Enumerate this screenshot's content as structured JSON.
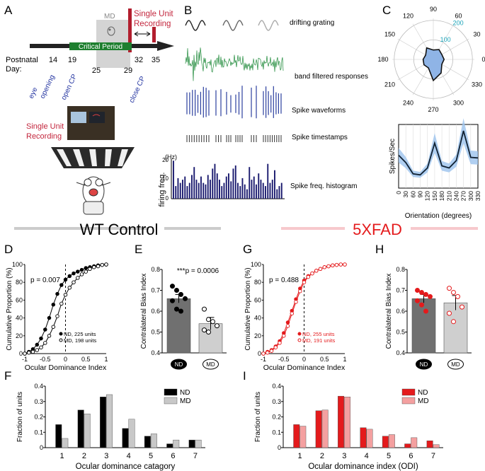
{
  "panel_letters": {
    "A": "A",
    "B": "B",
    "C": "C",
    "D": "D",
    "E": "E",
    "F": "F",
    "G": "G",
    "H": "H",
    "I": "I"
  },
  "panelA": {
    "md_label": "MD",
    "single_unit_recording": [
      "Single Unit",
      "Recording"
    ],
    "critical_period": "Critical Period",
    "postnatal_label": [
      "Postnatal",
      "Day:"
    ],
    "day_ticks": [
      "14",
      "19",
      "25",
      "29",
      "32",
      "35"
    ],
    "events": [
      "eye",
      "opening",
      "open CP",
      "close CP"
    ],
    "rig_label": [
      "Single Unit",
      "Recording"
    ]
  },
  "panelB": {
    "drifting_grating": "drifting grating",
    "band_filtered": "band filtered responses",
    "spike_waveforms": "Spike waveforms",
    "spike_timestamps": "Spike timestamps",
    "hist_unit": "(Hz)",
    "hist_ylabel": "firing freq.",
    "hist_title": "Spike freq. histogram",
    "hist_ticks": [
      "20",
      "10",
      "0"
    ]
  },
  "groups": {
    "wt": "WT Control",
    "fad": "5XFAD"
  },
  "chart_data": [
    {
      "id": "C-polar",
      "type": "polar",
      "angles": [
        "90",
        "60",
        "30",
        "0",
        "330",
        "300",
        "270",
        "240",
        "210",
        "180",
        "150",
        "120"
      ],
      "radial_ticks": [
        "100",
        "200"
      ],
      "theta_deg": [
        0,
        30,
        60,
        90,
        120,
        150,
        180,
        210,
        240,
        270,
        300,
        330
      ],
      "r": [
        55,
        50,
        58,
        48,
        68,
        45,
        52,
        55,
        50,
        108,
        80,
        50
      ]
    },
    {
      "id": "C-tuning",
      "type": "line",
      "ylabel": "Spikes/Sec",
      "xlabel": "Orientation (degrees)",
      "x": [
        0,
        30,
        60,
        90,
        120,
        150,
        180,
        210,
        240,
        270,
        300,
        330
      ],
      "x_ticks": [
        "0",
        "30",
        "60",
        "90",
        "120",
        "150",
        "180",
        "210",
        "240",
        "270",
        "300",
        "330"
      ],
      "y": [
        62,
        48,
        27,
        25,
        38,
        85,
        42,
        38,
        52,
        108,
        58,
        57
      ],
      "ylim": [
        0,
        120
      ]
    },
    {
      "id": "D",
      "type": "line",
      "title": "WT Control",
      "xlabel": "Ocular Dominance Index",
      "ylabel": "Cumulative Proportion (%)",
      "xlim": [
        -1,
        1
      ],
      "ylim": [
        0,
        100
      ],
      "x_ticks": [
        "-1",
        "-0.5",
        "0",
        "0.5",
        "1"
      ],
      "y_ticks": [
        "0",
        "20",
        "40",
        "60",
        "80",
        "100"
      ],
      "annotation": "p = 0.007",
      "series": [
        {
          "name": "ND, 225 units",
          "x": [
            -1,
            -0.9,
            -0.8,
            -0.7,
            -0.6,
            -0.5,
            -0.4,
            -0.3,
            -0.2,
            -0.1,
            0,
            0.1,
            0.2,
            0.3,
            0.4,
            0.5,
            0.6,
            0.7,
            0.8,
            0.9,
            1
          ],
          "y": [
            0,
            2,
            5,
            10,
            17,
            27,
            40,
            55,
            67,
            77,
            83,
            87,
            90,
            92,
            94,
            96,
            97,
            98,
            99,
            99.5,
            100
          ]
        },
        {
          "name": "MD, 198 units",
          "x": [
            -1,
            -0.9,
            -0.8,
            -0.7,
            -0.6,
            -0.5,
            -0.4,
            -0.3,
            -0.2,
            -0.1,
            0,
            0.1,
            0.2,
            0.3,
            0.4,
            0.5,
            0.6,
            0.7,
            0.8,
            0.9,
            1
          ],
          "y": [
            0,
            1,
            2,
            4,
            7,
            12,
            20,
            30,
            42,
            56,
            66,
            74,
            80,
            85,
            89,
            92,
            95,
            97,
            98,
            99.5,
            100
          ]
        }
      ]
    },
    {
      "id": "E",
      "type": "bar",
      "ylabel": "Contralateral Bias Index",
      "categories": [
        "ND",
        "MD"
      ],
      "values": [
        0.66,
        0.54
      ],
      "sem": [
        0.02,
        0.03
      ],
      "ylim": [
        0.4,
        0.8
      ],
      "y_ticks": [
        "0.4",
        "0.5",
        "0.6",
        "0.7",
        "0.8"
      ],
      "annotation": "***p = 0.0006",
      "points": [
        [
          0.72,
          0.7,
          0.68,
          0.66,
          0.65,
          0.61,
          0.6
        ],
        [
          0.61,
          0.56,
          0.55,
          0.53,
          0.51,
          0.5
        ]
      ]
    },
    {
      "id": "F",
      "type": "bar",
      "xlabel": "Ocular dominance catagory",
      "ylabel": "Fraction of units",
      "categories": [
        "1",
        "2",
        "3",
        "4",
        "5",
        "6",
        "7"
      ],
      "ylim": [
        0,
        0.4
      ],
      "y_ticks": [
        "0",
        "0.1",
        "0.2",
        "0.3",
        "0.4"
      ],
      "series": [
        {
          "name": "ND",
          "values": [
            0.15,
            0.245,
            0.33,
            0.125,
            0.075,
            0.025,
            0.05
          ]
        },
        {
          "name": "MD",
          "values": [
            0.06,
            0.22,
            0.345,
            0.185,
            0.09,
            0.05,
            0.05
          ]
        }
      ]
    },
    {
      "id": "G",
      "type": "line",
      "title": "5XFAD",
      "xlabel": "Ocular Dominance Index",
      "ylabel": "Cumulative Proportion (%)",
      "xlim": [
        -1,
        1
      ],
      "ylim": [
        0,
        100
      ],
      "x_ticks": [
        "-1",
        "-0.5",
        "0",
        "0.5",
        "1"
      ],
      "y_ticks": [
        "0",
        "20",
        "40",
        "60",
        "80",
        "100"
      ],
      "annotation": "p = 0.488",
      "series": [
        {
          "name": "ND, 255 units",
          "x": [
            -1,
            -0.9,
            -0.8,
            -0.7,
            -0.6,
            -0.5,
            -0.4,
            -0.3,
            -0.2,
            -0.1,
            0,
            0.1,
            0.2,
            0.3,
            0.4,
            0.5,
            0.6,
            0.7,
            0.8,
            0.9,
            1
          ],
          "y": [
            0,
            2,
            4,
            8,
            14,
            23,
            35,
            48,
            61,
            73,
            82,
            87,
            90,
            93,
            95,
            97,
            98,
            99,
            99.5,
            100,
            100
          ]
        },
        {
          "name": "MD, 191 units",
          "x": [
            -1,
            -0.9,
            -0.8,
            -0.7,
            -0.6,
            -0.5,
            -0.4,
            -0.3,
            -0.2,
            -0.1,
            0,
            0.1,
            0.2,
            0.3,
            0.4,
            0.5,
            0.6,
            0.7,
            0.8,
            0.9,
            1
          ],
          "y": [
            0,
            1,
            3,
            7,
            12,
            20,
            31,
            45,
            58,
            70,
            80,
            86,
            90,
            93,
            95,
            97,
            98,
            99,
            99.5,
            100,
            100
          ]
        }
      ]
    },
    {
      "id": "H",
      "type": "bar",
      "ylabel": "Contralateral Bias Index",
      "categories": [
        "ND",
        "MD"
      ],
      "values": [
        0.66,
        0.64
      ],
      "sem": [
        0.02,
        0.035
      ],
      "ylim": [
        0.4,
        0.8
      ],
      "y_ticks": [
        "0.4",
        "0.5",
        "0.6",
        "0.7",
        "0.8"
      ],
      "points": [
        [
          0.7,
          0.69,
          0.68,
          0.67,
          0.65,
          0.63,
          0.6
        ],
        [
          0.71,
          0.69,
          0.67,
          0.62,
          0.59,
          0.55
        ]
      ]
    },
    {
      "id": "I",
      "type": "bar",
      "xlabel": "Ocular dominance index (ODI)",
      "ylabel": "Fraction of units",
      "categories": [
        "1",
        "2",
        "3",
        "4",
        "5",
        "6",
        "7"
      ],
      "ylim": [
        0,
        0.4
      ],
      "y_ticks": [
        "0",
        "0.1",
        "0.2",
        "0.3",
        "0.4"
      ],
      "series": [
        {
          "name": "ND",
          "values": [
            0.15,
            0.24,
            0.335,
            0.13,
            0.075,
            0.025,
            0.045
          ]
        },
        {
          "name": "MD",
          "values": [
            0.14,
            0.245,
            0.33,
            0.12,
            0.085,
            0.065,
            0.02
          ]
        }
      ]
    }
  ],
  "colors": {
    "wt_nd": "#000000",
    "wt_md": "#c8c8c8",
    "fad_nd": "#e41a1c",
    "fad_md": "#f4a0a0",
    "green": "#1f8a3a",
    "navy": "#1a1a6e",
    "blue": "#2b3f9e",
    "red_title": "#e41a1c",
    "light_blue": "#9cc3ee"
  }
}
